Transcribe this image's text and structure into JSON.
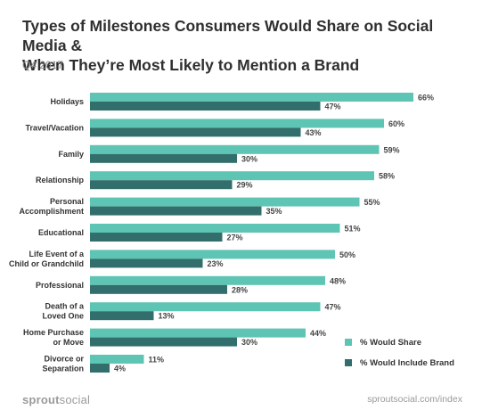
{
  "header": {
    "title_line1": "Types of Milestones Consumers Would Share on Social Media &",
    "title_line2": "When They’re Most Likely to Mention a Brand",
    "subtitle": "Q4 2017"
  },
  "footer": {
    "logo_bold": "sprout",
    "logo_thin": "social",
    "url": "sproutsocial.com/index"
  },
  "colors": {
    "share": "#5ec4b4",
    "brand": "#326e6b"
  },
  "chart_data": {
    "type": "bar",
    "orientation": "horizontal",
    "value_suffix": "%",
    "categories": [
      [
        "Holidays"
      ],
      [
        "Travel/Vacation"
      ],
      [
        "Family"
      ],
      [
        "Relationship"
      ],
      [
        "Personal",
        "Accomplishment"
      ],
      [
        "Educational"
      ],
      [
        "Life Event of a",
        "Child or Grandchild"
      ],
      [
        "Professional"
      ],
      [
        "Death of a",
        "Loved One"
      ],
      [
        "Home Purchase",
        "or Move"
      ],
      [
        "Divorce or",
        "Separation"
      ]
    ],
    "series": [
      {
        "name": "% Would Share",
        "values": [
          66,
          60,
          59,
          58,
          55,
          51,
          50,
          48,
          47,
          44,
          11
        ]
      },
      {
        "name": "% Would Include Brand",
        "values": [
          47,
          43,
          30,
          29,
          35,
          27,
          23,
          28,
          13,
          30,
          4
        ]
      }
    ],
    "xlim": [
      0,
      66
    ],
    "grid": false,
    "legend_position": "bottom-right"
  }
}
